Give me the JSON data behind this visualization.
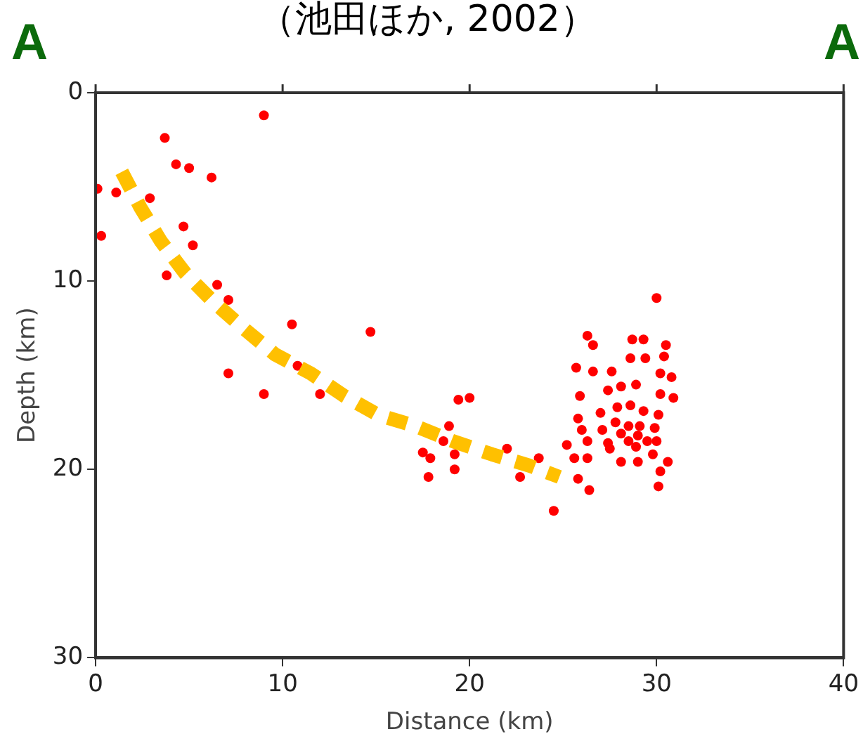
{
  "chart_data": {
    "type": "scatter",
    "title": "（池田ほか, 2002）",
    "xlabel": "Distance (km)",
    "ylabel": "Depth (km)",
    "annotations": [
      "A",
      "A"
    ],
    "xlim": [
      0,
      40
    ],
    "xticks": [
      0,
      10,
      20,
      30,
      40
    ],
    "ylim": [
      30,
      0
    ],
    "yticks": [
      0,
      10,
      20,
      30
    ],
    "grid": false,
    "legend": false,
    "series": [
      {
        "type": "scatter",
        "color": "#ff0000",
        "marker": "circle",
        "x": [
          9.0,
          3.7,
          4.3,
          5.0,
          6.2,
          0.1,
          1.1,
          2.9,
          0.3,
          4.7,
          5.2,
          3.8,
          6.5,
          7.1,
          10.5,
          14.7,
          7.1,
          10.8,
          9.0,
          12.0,
          19.4,
          20.0,
          18.9,
          18.6,
          17.5,
          17.9,
          17.8,
          19.2,
          19.2,
          22.0,
          23.7,
          22.7,
          24.5,
          25.2,
          25.7,
          25.9,
          30.0,
          26.3,
          26.6,
          28.7,
          29.3,
          30.5,
          30.4,
          26.6,
          27.6,
          28.6,
          29.4,
          30.2,
          30.8,
          27.4,
          28.1,
          28.9,
          30.2,
          30.9,
          27.0,
          27.9,
          28.6,
          29.3,
          30.1,
          25.8,
          27.8,
          28.5,
          29.1,
          29.9,
          26.0,
          27.1,
          28.1,
          29.0,
          26.3,
          27.4,
          28.5,
          29.5,
          27.5,
          28.9,
          30.0,
          25.6,
          26.3,
          28.1,
          29.0,
          29.8,
          30.6,
          30.2,
          25.8,
          26.4,
          30.1
        ],
        "values": [
          1.2,
          2.4,
          3.8,
          4.0,
          4.5,
          5.1,
          5.3,
          5.6,
          7.6,
          7.1,
          8.1,
          9.7,
          10.2,
          11.0,
          12.3,
          12.7,
          14.9,
          14.5,
          16.0,
          16.0,
          16.3,
          16.2,
          17.7,
          18.5,
          19.1,
          19.4,
          20.4,
          19.2,
          20.0,
          18.9,
          19.4,
          20.4,
          22.2,
          18.7,
          14.6,
          16.1,
          10.9,
          12.9,
          13.4,
          13.1,
          13.1,
          13.4,
          14.0,
          14.8,
          14.8,
          14.1,
          14.1,
          14.9,
          15.1,
          15.8,
          15.6,
          15.5,
          16.0,
          16.2,
          17.0,
          16.7,
          16.6,
          16.9,
          17.1,
          17.3,
          17.5,
          17.7,
          17.7,
          17.8,
          17.9,
          17.9,
          18.1,
          18.2,
          18.5,
          18.6,
          18.5,
          18.5,
          18.9,
          18.8,
          18.5,
          19.4,
          19.4,
          19.6,
          19.6,
          19.2,
          19.6,
          20.1,
          20.5,
          21.1,
          20.9
        ]
      },
      {
        "type": "line",
        "color": "#ffc000",
        "line_style": "dashed",
        "marker": "none",
        "x": [
          1.4,
          2.4,
          3.5,
          4.8,
          6.3,
          7.9,
          9.6,
          11.5,
          13.3,
          15.1,
          17.1,
          19.1,
          21.2,
          23.2,
          24.8
        ],
        "values": [
          4.2,
          6.1,
          7.9,
          9.6,
          11.1,
          12.5,
          13.9,
          14.9,
          16.1,
          17.1,
          17.7,
          18.5,
          19.2,
          19.8,
          20.4
        ]
      }
    ]
  }
}
